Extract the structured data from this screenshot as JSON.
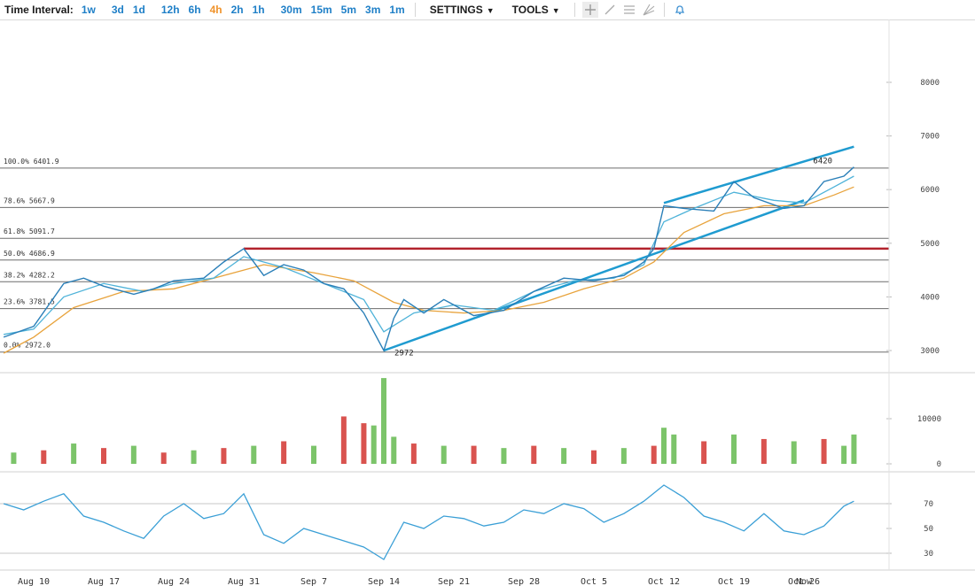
{
  "toolbar": {
    "time_interval_label": "Time Interval:",
    "intervals": [
      {
        "label": "1w",
        "active": false
      },
      {
        "label": "3d",
        "active": false
      },
      {
        "label": "1d",
        "active": false
      },
      {
        "label": "12h",
        "active": false
      },
      {
        "label": "6h",
        "active": false
      },
      {
        "label": "4h",
        "active": true
      },
      {
        "label": "2h",
        "active": false
      },
      {
        "label": "1h",
        "active": false
      },
      {
        "label": "30m",
        "active": false
      },
      {
        "label": "15m",
        "active": false
      },
      {
        "label": "5m",
        "active": false
      },
      {
        "label": "3m",
        "active": false
      },
      {
        "label": "1m",
        "active": false
      }
    ],
    "settings_label": "SETTINGS",
    "tools_label": "TOOLS",
    "icons": [
      "crosshair-icon",
      "trendline-icon",
      "fib-retracement-icon",
      "fan-icon",
      "alert-bell-icon"
    ]
  },
  "colors": {
    "price_line": "#2a7fb8",
    "short_ma": "#4fb3d9",
    "long_ma": "#e8a33c",
    "channel": "#1f9bd0",
    "resistance": "#b2222c",
    "fib_line": "#6d6d6d",
    "vol_up": "#7cc46a",
    "vol_down": "#d9534f",
    "rsi_line": "#3a9fd6"
  },
  "chart_data": [
    {
      "type": "line",
      "panel": "price",
      "x_ticks": [
        "Aug 10",
        "Aug 17",
        "Aug 24",
        "Aug 31",
        "Sep 7",
        "Sep 14",
        "Sep 21",
        "Sep 28",
        "Oct 5",
        "Oct 12",
        "Oct 19",
        "Oct 26",
        "Now"
      ],
      "y_ticks": [
        3000,
        4000,
        5000,
        6000,
        7000,
        8000
      ],
      "ylim": [
        2950,
        8200
      ],
      "series": [
        {
          "role": "price",
          "x": [
            "Aug 7",
            "Aug 10",
            "Aug 13",
            "Aug 15",
            "Aug 17",
            "Aug 20",
            "Aug 22",
            "Aug 24",
            "Aug 27",
            "Aug 29",
            "Aug 31",
            "Sep 2",
            "Sep 4",
            "Sep 6",
            "Sep 8",
            "Sep 10",
            "Sep 12",
            "Sep 14",
            "Sep 15",
            "Sep 16",
            "Sep 18",
            "Sep 20",
            "Sep 23",
            "Sep 26",
            "Sep 29",
            "Oct 2",
            "Oct 5",
            "Oct 8",
            "Oct 10",
            "Oct 11",
            "Oct 12",
            "Oct 14",
            "Oct 17",
            "Oct 19",
            "Oct 21",
            "Oct 24",
            "Oct 26",
            "Oct 28",
            "Oct 30",
            "Oct 31"
          ],
          "y": [
            3250,
            3450,
            4250,
            4350,
            4200,
            4050,
            4150,
            4300,
            4350,
            4650,
            4900,
            4400,
            4600,
            4500,
            4250,
            4150,
            3700,
            3000,
            3600,
            3950,
            3700,
            3950,
            3650,
            3750,
            4100,
            4350,
            4300,
            4400,
            4650,
            4900,
            5700,
            5650,
            5600,
            6150,
            5850,
            5650,
            5700,
            6150,
            6250,
            6420
          ]
        },
        {
          "role": "short_ma",
          "x": [
            "Aug 7",
            "Aug 10",
            "Aug 13",
            "Aug 17",
            "Aug 21",
            "Aug 24",
            "Aug 28",
            "Aug 31",
            "Sep 4",
            "Sep 8",
            "Sep 12",
            "Sep 14",
            "Sep 17",
            "Sep 21",
            "Sep 25",
            "Sep 29",
            "Oct 3",
            "Oct 7",
            "Oct 10",
            "Oct 12",
            "Oct 15",
            "Oct 19",
            "Oct 23",
            "Oct 26",
            "Oct 29",
            "Oct 31"
          ],
          "y": [
            3300,
            3400,
            4000,
            4250,
            4100,
            4250,
            4350,
            4750,
            4550,
            4250,
            3950,
            3350,
            3700,
            3850,
            3750,
            4100,
            4300,
            4350,
            4600,
            5400,
            5650,
            5950,
            5800,
            5750,
            6050,
            6250
          ]
        },
        {
          "role": "long_ma",
          "x": [
            "Aug 7",
            "Aug 10",
            "Aug 14",
            "Aug 19",
            "Aug 24",
            "Aug 29",
            "Sep 2",
            "Sep 7",
            "Sep 11",
            "Sep 15",
            "Sep 18",
            "Sep 22",
            "Sep 26",
            "Sep 30",
            "Oct 4",
            "Oct 8",
            "Oct 11",
            "Oct 14",
            "Oct 18",
            "Oct 22",
            "Oct 26",
            "Oct 29",
            "Oct 31"
          ],
          "y": [
            2950,
            3250,
            3800,
            4100,
            4150,
            4400,
            4600,
            4450,
            4300,
            3900,
            3750,
            3700,
            3750,
            3900,
            4150,
            4350,
            4650,
            5200,
            5550,
            5700,
            5700,
            5900,
            6050
          ]
        }
      ],
      "fibonacci": [
        {
          "label": "100.0% 6401.9",
          "value": 6401.9
        },
        {
          "label": "78.6% 5667.9",
          "value": 5667.9
        },
        {
          "label": "61.8% 5091.7",
          "value": 5091.7
        },
        {
          "label": "50.0% 4686.9",
          "value": 4686.9
        },
        {
          "label": "38.2% 4282.2",
          "value": 4282.2
        },
        {
          "label": "23.6% 3781.5",
          "value": 3781.5
        },
        {
          "label": "0.0% 2972.0",
          "value": 2972.0
        }
      ],
      "horizontal_line": {
        "value": 4900,
        "x_from": "Aug 31",
        "x_to": "Now"
      },
      "channel": {
        "upper": {
          "x": [
            "Oct 12",
            "Oct 31"
          ],
          "y": [
            5750,
            6800
          ]
        },
        "lower": {
          "x": [
            "Sep 14",
            "Now"
          ],
          "y": [
            3000,
            5800
          ]
        }
      },
      "annotations": [
        {
          "text": "2972",
          "x": "Sep 14",
          "y": 2972
        },
        {
          "text": "6420",
          "x": "Oct 31",
          "y": 6420
        }
      ]
    },
    {
      "type": "bar",
      "panel": "volume",
      "y_ticks": [
        0,
        10000
      ],
      "ylim": [
        0,
        19500
      ],
      "x": [
        "Aug 8",
        "Aug 11",
        "Aug 14",
        "Aug 17",
        "Aug 20",
        "Aug 23",
        "Aug 26",
        "Aug 29",
        "Sep 1",
        "Sep 4",
        "Sep 7",
        "Sep 10",
        "Sep 12",
        "Sep 13",
        "Sep 14",
        "Sep 15",
        "Sep 17",
        "Sep 20",
        "Sep 23",
        "Sep 26",
        "Sep 29",
        "Oct 2",
        "Oct 5",
        "Oct 8",
        "Oct 11",
        "Oct 12",
        "Oct 13",
        "Oct 16",
        "Oct 19",
        "Oct 22",
        "Oct 25",
        "Oct 28",
        "Oct 30",
        "Oct 31"
      ],
      "values": [
        2500,
        3000,
        4500,
        3500,
        4000,
        2500,
        3000,
        3500,
        4000,
        5000,
        4000,
        10500,
        9000,
        8500,
        19000,
        6000,
        4500,
        4000,
        4000,
        3500,
        4000,
        3500,
        3000,
        3500,
        4000,
        8000,
        6500,
        5000,
        6500,
        5500,
        5000,
        5500,
        4000,
        6500
      ],
      "up": [
        true,
        false,
        true,
        false,
        true,
        false,
        true,
        false,
        true,
        false,
        true,
        false,
        false,
        true,
        true,
        true,
        false,
        true,
        false,
        true,
        false,
        true,
        false,
        true,
        false,
        true,
        true,
        false,
        true,
        false,
        true,
        false,
        true,
        true
      ]
    },
    {
      "type": "line",
      "panel": "rsi",
      "y_ticks": [
        30,
        50,
        70
      ],
      "ylim": [
        20,
        90
      ],
      "series": [
        {
          "role": "rsi",
          "x": [
            "Aug 7",
            "Aug 9",
            "Aug 11",
            "Aug 13",
            "Aug 15",
            "Aug 17",
            "Aug 19",
            "Aug 21",
            "Aug 23",
            "Aug 25",
            "Aug 27",
            "Aug 29",
            "Aug 31",
            "Sep 2",
            "Sep 4",
            "Sep 6",
            "Sep 8",
            "Sep 10",
            "Sep 12",
            "Sep 14",
            "Sep 16",
            "Sep 18",
            "Sep 20",
            "Sep 22",
            "Sep 24",
            "Sep 26",
            "Sep 28",
            "Sep 30",
            "Oct 2",
            "Oct 4",
            "Oct 6",
            "Oct 8",
            "Oct 10",
            "Oct 12",
            "Oct 14",
            "Oct 16",
            "Oct 18",
            "Oct 20",
            "Oct 22",
            "Oct 24",
            "Oct 26",
            "Oct 28",
            "Oct 30",
            "Oct 31"
          ],
          "y": [
            70,
            65,
            72,
            78,
            60,
            55,
            48,
            42,
            60,
            70,
            58,
            62,
            78,
            45,
            38,
            50,
            45,
            40,
            35,
            25,
            55,
            50,
            60,
            58,
            52,
            55,
            65,
            62,
            70,
            66,
            55,
            62,
            72,
            85,
            75,
            60,
            55,
            48,
            62,
            48,
            45,
            52,
            68,
            72
          ]
        }
      ]
    }
  ]
}
